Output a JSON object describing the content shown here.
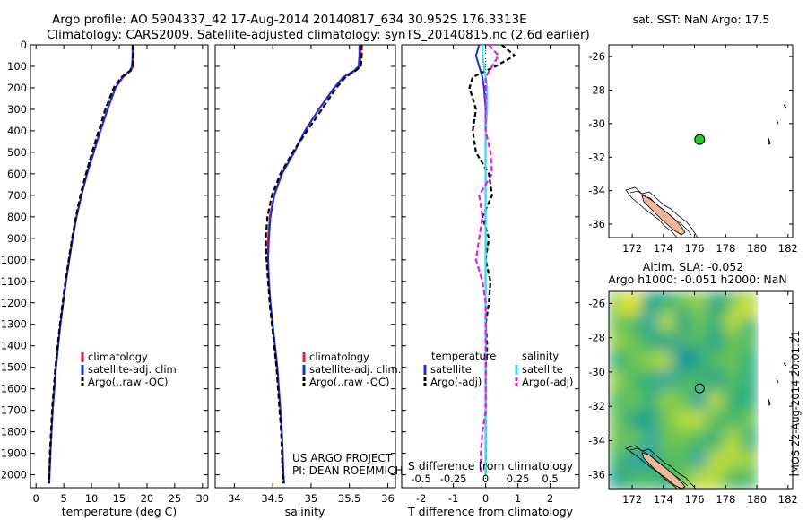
{
  "header": {
    "line1": "Argo profile: AO 5904337_42 17-Aug-2014 20140817_634 30.952S 176.3313E",
    "line2": "Climatology: CARS2009. Satellite-adjusted climatology: synTS_20140815.nc (2.6d earlier)"
  },
  "colors": {
    "climatology": "#e8202a",
    "satellite": "#1a2ee0",
    "argo": "#000000",
    "satellite_s": "#30e0f0",
    "argo_s": "#e020e0",
    "land": "#f0b898",
    "dot": "#22cc22"
  },
  "chart_data": [
    {
      "type": "line",
      "panel": "temperature",
      "xlabel": "temperature (deg C)",
      "xlim": [
        -1,
        31
      ],
      "xticks": [
        0,
        5,
        10,
        15,
        20,
        25,
        30
      ],
      "ylim": [
        2060,
        0
      ],
      "yticks": [
        0,
        100,
        200,
        300,
        400,
        500,
        600,
        700,
        800,
        900,
        1000,
        1100,
        1200,
        1300,
        1400,
        1500,
        1600,
        1700,
        1800,
        1900,
        2000
      ],
      "depth": [
        0,
        50,
        100,
        120,
        150,
        200,
        300,
        400,
        500,
        600,
        700,
        800,
        900,
        1000,
        1100,
        1200,
        1300,
        1400,
        1500,
        1600,
        1700,
        1800,
        1900,
        2000,
        2040
      ],
      "legend": [
        "climatology",
        "satellite-adj. clim.",
        "Argo(..raw -QC)"
      ],
      "series": [
        {
          "name": "climatology",
          "values": [
            17.6,
            17.6,
            17.5,
            17.1,
            15.7,
            14.3,
            12.9,
            11.6,
            10.4,
            9.2,
            8.2,
            7.3,
            6.6,
            6.0,
            5.4,
            4.9,
            4.4,
            4.0,
            3.6,
            3.3,
            3.0,
            2.8,
            2.6,
            2.4,
            2.35
          ]
        },
        {
          "name": "satellite-adj. clim.",
          "values": [
            17.4,
            17.4,
            17.3,
            16.9,
            15.6,
            14.3,
            12.9,
            11.6,
            10.4,
            9.2,
            8.2,
            7.3,
            6.6,
            6.0,
            5.4,
            4.9,
            4.4,
            4.0,
            3.6,
            3.3,
            3.0,
            2.8,
            2.6,
            2.45,
            2.4
          ]
        },
        {
          "name": "Argo(..raw -QC)",
          "values": [
            17.5,
            17.5,
            17.4,
            17.0,
            15.4,
            14.0,
            12.5,
            11.3,
            10.1,
            9.0,
            8.0,
            7.2,
            6.5,
            5.9,
            5.3,
            4.8,
            4.3,
            3.9,
            3.5,
            3.2,
            2.9,
            2.7,
            2.5,
            2.4,
            2.35
          ]
        }
      ]
    },
    {
      "type": "line",
      "panel": "salinity",
      "xlabel": "salinity",
      "xlim": [
        33.75,
        36.1
      ],
      "xticks": [
        34,
        34.5,
        35,
        35.5,
        36
      ],
      "ylim": [
        2060,
        0
      ],
      "depth": [
        0,
        50,
        100,
        120,
        150,
        200,
        300,
        400,
        500,
        600,
        700,
        800,
        900,
        1000,
        1100,
        1200,
        1300,
        1400,
        1500,
        1600,
        1700,
        1800,
        1900,
        2000,
        2040
      ],
      "legend": [
        "climatology",
        "satellite-adj. clim.",
        "Argo(..raw -QC)"
      ],
      "annotation": [
        "US ARGO PROJECT",
        "PI: DEAN ROEMMICH"
      ],
      "series": [
        {
          "name": "climatology",
          "values": [
            35.65,
            35.65,
            35.64,
            35.58,
            35.42,
            35.3,
            35.1,
            34.92,
            34.78,
            34.62,
            34.52,
            34.46,
            34.44,
            34.44,
            34.45,
            34.47,
            34.5,
            34.53,
            34.56,
            34.58,
            34.6,
            34.62,
            34.63,
            34.64,
            34.65
          ]
        },
        {
          "name": "satellite-adj. clim.",
          "values": [
            35.63,
            35.63,
            35.62,
            35.56,
            35.42,
            35.3,
            35.1,
            34.92,
            34.78,
            34.62,
            34.52,
            34.47,
            34.45,
            34.44,
            34.45,
            34.47,
            34.5,
            34.53,
            34.56,
            34.58,
            34.6,
            34.62,
            34.63,
            34.64,
            34.65
          ]
        },
        {
          "name": "Argo(..raw -QC)",
          "values": [
            35.66,
            35.66,
            35.65,
            35.58,
            35.45,
            35.33,
            35.14,
            34.95,
            34.76,
            34.6,
            34.49,
            34.43,
            34.41,
            34.42,
            34.44,
            34.46,
            34.49,
            34.52,
            34.55,
            34.57,
            34.59,
            34.61,
            34.62,
            34.63,
            34.64
          ]
        }
      ]
    },
    {
      "type": "line",
      "panel": "difference",
      "xlabel": "T difference from climatology",
      "xlabel2": "S difference from climatology",
      "xlim": [
        -2.6,
        2.9
      ],
      "xticks": [
        -2,
        -1,
        0,
        1,
        2
      ],
      "sticks": [
        {
          "v": -2,
          "label": "-0.5"
        },
        {
          "v": -1,
          "label": "-0.25"
        },
        {
          "v": 0,
          "label": "0"
        },
        {
          "v": 1,
          "label": "0.25"
        },
        {
          "v": 2,
          "label": "0.5"
        }
      ],
      "ylim": [
        2060,
        0
      ],
      "depth": [
        0,
        50,
        100,
        150,
        200,
        300,
        400,
        500,
        600,
        700,
        800,
        900,
        1000,
        1100,
        1200,
        1300,
        1400,
        1500,
        1600,
        1700,
        1800,
        1900,
        2000
      ],
      "legend_t_title": "temperature",
      "legend_s_title": "salinity",
      "legend_t": [
        "satellite",
        "Argo(-adj)"
      ],
      "legend_s": [
        "satellite",
        "Argo(-adj)"
      ],
      "series": [
        {
          "name": "T satellite",
          "values": [
            -0.2,
            -0.3,
            -0.2,
            -0.1,
            -0.05,
            0,
            0,
            0,
            0,
            0,
            0,
            0,
            0,
            0,
            0,
            0,
            0,
            0,
            0,
            0,
            0,
            0,
            0
          ]
        },
        {
          "name": "T Argo(-adj)",
          "values": [
            0.5,
            0.9,
            0.3,
            -0.4,
            -0.5,
            -0.3,
            -0.4,
            -0.3,
            0.1,
            0.2,
            -0.1,
            0.1,
            0.0,
            0.15,
            0.1,
            0.0,
            0.05,
            0.0,
            0.0,
            0.0,
            0.0,
            0.0,
            0.0
          ]
        },
        {
          "name": "S satellite",
          "values": [
            -0.1,
            -0.1,
            -0.05,
            0,
            0.05,
            0.05,
            0.0,
            0.0,
            0.0,
            0.0,
            0.0,
            0.0,
            0.0,
            0.0,
            0.0,
            0.0,
            0.0,
            0.0,
            0.0,
            0.0,
            0.0,
            0.0,
            0.0
          ]
        },
        {
          "name": "S Argo(-adj)",
          "values": [
            0.1,
            0.4,
            0.2,
            0.0,
            0.0,
            0.0,
            0.0,
            0.15,
            0.2,
            -0.2,
            -0.1,
            -0.2,
            -0.3,
            -0.1,
            0.0,
            0.0,
            0.0,
            0.0,
            0.0,
            0.0,
            -0.1,
            -0.15,
            -0.15
          ]
        }
      ]
    },
    {
      "type": "scatter",
      "panel": "sst-map",
      "title": "sat. SST: NaN Argo: 17.5",
      "xlim": [
        170.5,
        182.3
      ],
      "ylim": [
        -36.8,
        -25.3
      ],
      "xticks": [
        172,
        174,
        176,
        178,
        180,
        182
      ],
      "yticks": [
        -26,
        -28,
        -30,
        -32,
        -34,
        -36
      ],
      "point": {
        "lon": 176.33,
        "lat": -30.95
      }
    },
    {
      "type": "heatmap",
      "panel": "sla-map",
      "title": "Altim. SLA: -0.052",
      "title2": "Argo h1000: -0.051 h2000: NaN",
      "xlim": [
        170.5,
        182.3
      ],
      "ylim": [
        -36.8,
        -25.3
      ],
      "xticks": [
        172,
        174,
        176,
        178,
        180,
        182
      ],
      "yticks": [
        -26,
        -28,
        -30,
        -32,
        -34,
        -36
      ],
      "data_extent_lon": [
        170.5,
        180
      ],
      "point": {
        "lon": 176.33,
        "lat": -30.95
      },
      "side_label": "IMOS 22-Aug-2014 20:01:21"
    }
  ]
}
